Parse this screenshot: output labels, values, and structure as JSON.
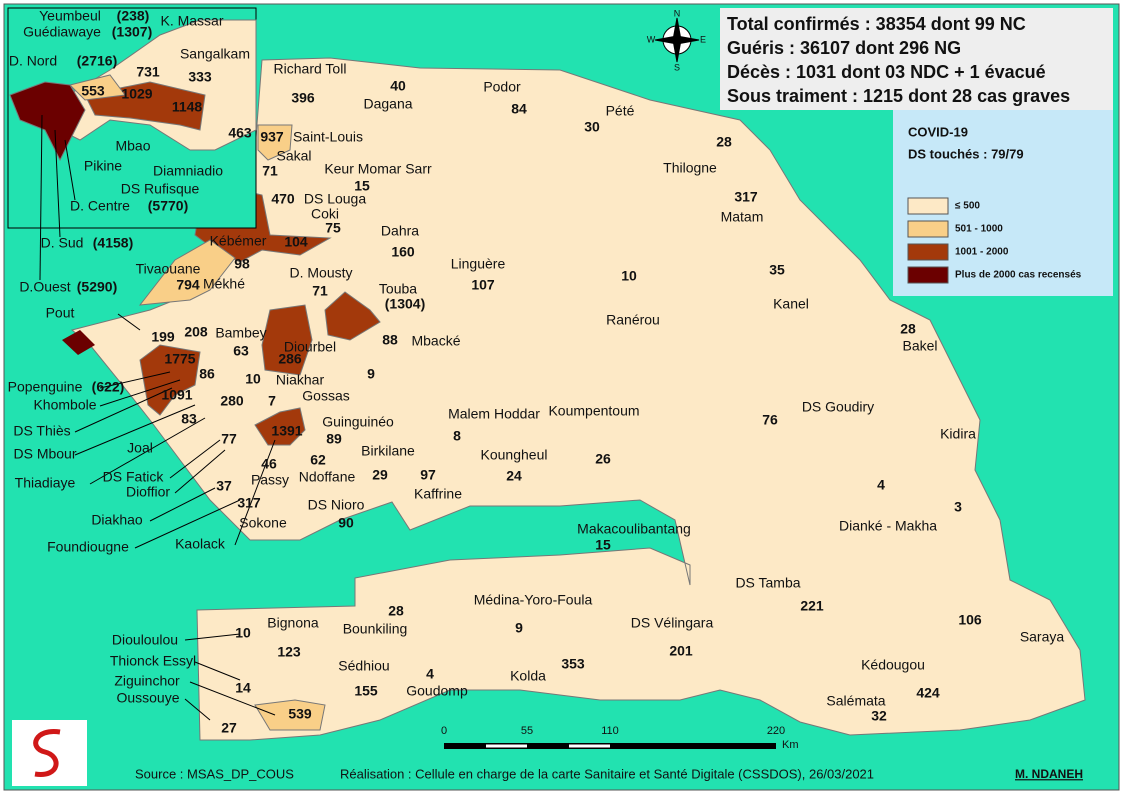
{
  "header": {
    "lines": [
      "Total confirmés : 38354 dont 99 NC",
      "Guéris : 36107 dont 296 NG",
      "Décès : 1031 dont 03 NDC + 1 évacué",
      "Sous traiment : 1215 dont 28 cas graves"
    ]
  },
  "legend": {
    "title": "COVID-19",
    "subtitle": "DS touchés : 79/79",
    "items": [
      {
        "label": "≤ 500",
        "color": "#fde9c6"
      },
      {
        "label": "501 - 1000",
        "color": "#f9cf88"
      },
      {
        "label": "1001 - 2000",
        "color": "#a3390b"
      },
      {
        "label": "Plus de 2000  cas recensés",
        "color": "#6b0000"
      }
    ]
  },
  "compass": {
    "n": "N",
    "s": "S",
    "e": "E",
    "w": "W"
  },
  "districts": [
    {
      "name": "Yeumbeul",
      "count": "(238)"
    },
    {
      "name": "Guédiawaye",
      "count": "(1307)"
    },
    {
      "name": "K. Massar",
      "count": 731
    },
    {
      "name": "D. Nord",
      "count": "(2716)"
    },
    {
      "name": "Sangalkam",
      "count": 333
    },
    {
      "name": "Pikine",
      "count": 553
    },
    {
      "name": "Mbao",
      "count": 1029
    },
    {
      "name": "Diamniadio",
      "count": 463
    },
    {
      "name": "DS Rufisque",
      "count": 1148
    },
    {
      "name": "D. Centre",
      "count": "(5770)"
    },
    {
      "name": "D. Sud",
      "count": "(4158)"
    },
    {
      "name": "D.Ouest",
      "count": "(5290)"
    },
    {
      "name": "Richard Toll",
      "count": 396
    },
    {
      "name": "Dagana",
      "count": 40
    },
    {
      "name": "Podor",
      "count": 84
    },
    {
      "name": "Pété",
      "count": 30
    },
    {
      "name": "Saint-Louis",
      "count": 937
    },
    {
      "name": "Sakal",
      "count": 71
    },
    {
      "name": "Keur Momar Sarr",
      "count": 15
    },
    {
      "name": "DS Louga",
      "count": 470
    },
    {
      "name": "Coki",
      "count": 75
    },
    {
      "name": "Thilogne",
      "count": 28
    },
    {
      "name": "Matam",
      "count": 317
    },
    {
      "name": "Dahra",
      "count": 160
    },
    {
      "name": "Linguère",
      "count": 107
    },
    {
      "name": "Kébémer",
      "count": 104
    },
    {
      "name": "Tivaouane",
      "count": 794
    },
    {
      "name": "Mékhé",
      "count": 98
    },
    {
      "name": "D. Mousty",
      "count": 71
    },
    {
      "name": "Touba",
      "count": "(1304)"
    },
    {
      "name": "Ranérou",
      "count": 10
    },
    {
      "name": "Kanel",
      "count": 35
    },
    {
      "name": "Pout",
      "count": 199
    },
    {
      "name": "Bambey",
      "count": 63
    },
    {
      "name": "Diourbel",
      "count": 286
    },
    {
      "name": "Mbacké",
      "count": 88
    },
    {
      "name": "Bakel",
      "count": 28
    },
    {
      "name": "Popenguine",
      "count": "(622)"
    },
    {
      "name": "Khombole",
      "count": 208
    },
    {
      "name": "Niakhar",
      "count": 10
    },
    {
      "name": "Gossas",
      "count": 9
    },
    {
      "name": "Guinguinéo",
      "count": 89
    },
    {
      "name": "Malem  Hoddar",
      "count": 8
    },
    {
      "name": "Koumpentoum",
      "count": 26
    },
    {
      "name": "DS Goudiry",
      "count": 76
    },
    {
      "name": "Kidira",
      "count": 3
    },
    {
      "name": "DS Thiès",
      "count": 1775
    },
    {
      "name": "DS Mbour",
      "count": 1091
    },
    {
      "name": "Joal",
      "count": 83
    },
    {
      "name": "Thiadiaye",
      "count": 86
    },
    {
      "name": "Birkilane",
      "count": 29
    },
    {
      "name": "Koungheul",
      "count": 24
    },
    {
      "name": "Ndoffane",
      "count": 62
    },
    {
      "name": "Kaffrine",
      "count": 97
    },
    {
      "name": "DS Fatick",
      "count": 280
    },
    {
      "name": "Dioffior",
      "count": 77
    },
    {
      "name": "Dianké - Makha",
      "count": 4
    },
    {
      "name": "Diakhao",
      "count": 7
    },
    {
      "name": "Passy",
      "count": 46
    },
    {
      "name": "Sokone",
      "count": 317
    },
    {
      "name": "DS Nioro",
      "count": 90
    },
    {
      "name": "Makacoulibantang",
      "count": 15
    },
    {
      "name": "Foundiougne",
      "count": 37
    },
    {
      "name": "Kaolack",
      "count": 1391
    },
    {
      "name": "DS Tamba",
      "count": 221
    },
    {
      "name": "Bignona",
      "count": 123
    },
    {
      "name": "Bounkiling",
      "count": 28
    },
    {
      "name": "Médina-Yoro-Foula",
      "count": 9
    },
    {
      "name": "DS Vélingara",
      "count": 201
    },
    {
      "name": "Saraya",
      "count": 106
    },
    {
      "name": "Diouloulou",
      "count": 10
    },
    {
      "name": "Thionck Essyl",
      "count": 14
    },
    {
      "name": "Sédhiou",
      "count": 155
    },
    {
      "name": "Goudomp",
      "count": 4
    },
    {
      "name": "Kolda",
      "count": 353
    },
    {
      "name": "Kédougou",
      "count": 424
    },
    {
      "name": "Ziguinchor",
      "count": 539
    },
    {
      "name": "Oussouye",
      "count": 27
    },
    {
      "name": "Salémata",
      "count": 32
    }
  ],
  "scale": {
    "ticks": [
      "0",
      "55",
      "110",
      "220"
    ],
    "unit": "Km"
  },
  "footer": {
    "source": "Source : MSAS_DP_COUS",
    "credit": "Réalisation : Cellule en charge de la carte Sanitaire et Santé Digitale (CSSDOS), 26/03/2021",
    "author": "M. NDANEH"
  }
}
